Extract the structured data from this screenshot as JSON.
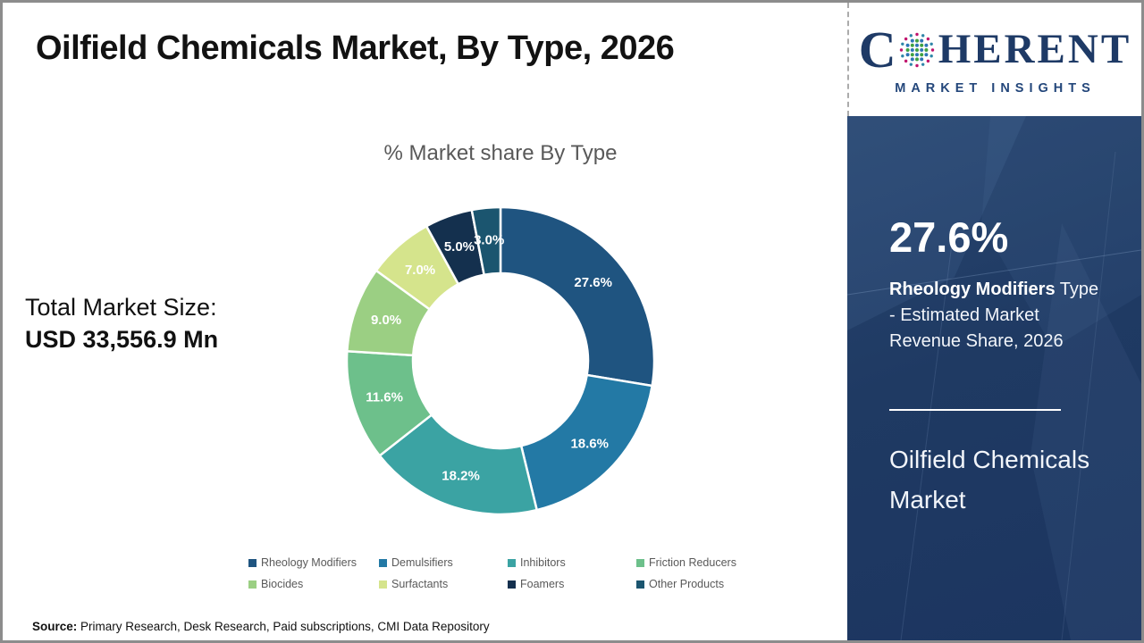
{
  "header": {
    "title": "Oilfield Chemicals Market, By Type, 2026"
  },
  "logo": {
    "part1": "C",
    "part2": "HERENT",
    "subtitle": "MARKET INSIGHTS",
    "globe_icon": "dot-globe-icon",
    "brand_navy": "#1E3A66"
  },
  "left_stat": {
    "label": "Total Market Size:",
    "value": "USD 33,556.9 Mn"
  },
  "chart_data": {
    "type": "pie",
    "subtype": "donut",
    "title": "% Market share By Type",
    "categories": [
      "Rheology Modifiers",
      "Demulsifiers",
      "Inhibitors",
      "Friction Reducers",
      "Biocides",
      "Surfactants",
      "Foamers",
      "Other Products"
    ],
    "values": [
      27.6,
      18.6,
      18.2,
      11.6,
      9.0,
      7.0,
      5.0,
      3.0
    ],
    "labels": [
      "27.6%",
      "18.6%",
      "18.2%",
      "11.6%",
      "9.0%",
      "7.0%",
      "5.0%",
      "3.0%"
    ],
    "colors": [
      "#1F5480",
      "#2379A5",
      "#3BA3A3",
      "#6DC08B",
      "#9BCF83",
      "#D5E48C",
      "#14304E",
      "#1B556F"
    ],
    "label_color": "#FFFFFF",
    "start_angle": 0,
    "direction": "clockwise",
    "hole_ratio": 0.57,
    "legend_position": "bottom",
    "legend_columns": 4
  },
  "sidebar": {
    "bg_color": "#1F3A63",
    "stat_value": "27.6%",
    "stat_label_bold": "Rheology Modifiers",
    "stat_label_rest": " Type - Estimated Market Revenue Share, 2026",
    "panel_title": "Oilfield Chemicals Market"
  },
  "source": {
    "prefix": "Source:",
    "text": " Primary Research, Desk Research, Paid subscriptions, CMI Data Repository"
  }
}
